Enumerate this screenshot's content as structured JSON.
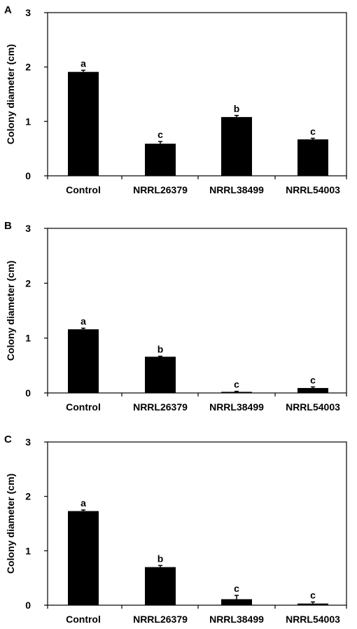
{
  "chart_data": [
    {
      "type": "bar",
      "panel": "A",
      "ylabel": "Colony diameter (cm)",
      "xlabel": "",
      "ylim": [
        0,
        3
      ],
      "yticks": [
        0,
        1,
        2,
        3
      ],
      "categories": [
        "Control",
        "NRRL26379",
        "NRRL38499",
        "NRRL54003"
      ],
      "values": [
        1.91,
        0.59,
        1.08,
        0.67
      ],
      "errors": [
        0.03,
        0.04,
        0.03,
        0.02
      ],
      "significance": [
        "a",
        "c",
        "b",
        "c"
      ],
      "bar_color": "#000000"
    },
    {
      "type": "bar",
      "panel": "B",
      "ylabel": "Colony diameter (cm)",
      "xlabel": "",
      "ylim": [
        0,
        3
      ],
      "yticks": [
        0,
        1,
        2,
        3
      ],
      "categories": [
        "Control",
        "NRRL26379",
        "NRRL38499",
        "NRRL54003"
      ],
      "values": [
        1.16,
        0.66,
        0.02,
        0.09
      ],
      "errors": [
        0.02,
        0.01,
        0.01,
        0.02
      ],
      "significance": [
        "a",
        "b",
        "c",
        "c"
      ],
      "bar_color": "#000000"
    },
    {
      "type": "bar",
      "panel": "C",
      "ylabel": "Colony diameter (cm)",
      "xlabel": "",
      "ylim": [
        0,
        3
      ],
      "yticks": [
        0,
        1,
        2,
        3
      ],
      "categories": [
        "Control",
        "NRRL26379",
        "NRRL38499",
        "NRRL54003"
      ],
      "values": [
        1.73,
        0.7,
        0.11,
        0.03
      ],
      "errors": [
        0.02,
        0.03,
        0.07,
        0.03
      ],
      "significance": [
        "a",
        "b",
        "c",
        "c"
      ],
      "bar_color": "#000000"
    }
  ]
}
